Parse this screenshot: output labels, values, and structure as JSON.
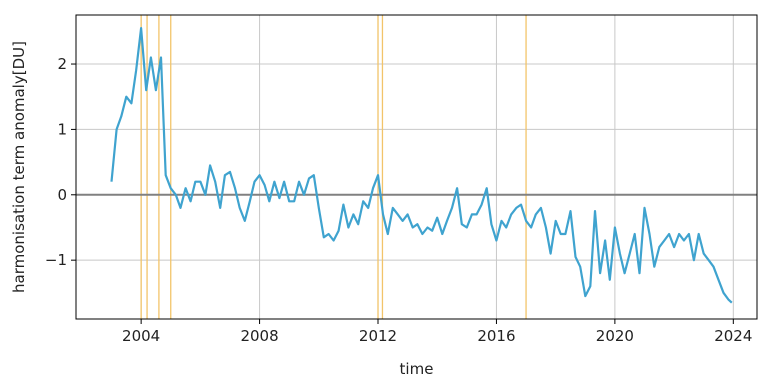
{
  "chart_data": {
    "type": "line",
    "title": "",
    "xlabel": "time",
    "ylabel": "harmonisation term anomaly[DU]",
    "xlim": [
      2001.8,
      2024.8
    ],
    "ylim": [
      -1.9,
      2.75
    ],
    "grid": true,
    "x_ticks": [
      2004,
      2008,
      2012,
      2016,
      2020,
      2024
    ],
    "x_tick_labels": [
      "2004",
      "2008",
      "2012",
      "2016",
      "2020",
      "2024"
    ],
    "y_ticks": [
      -1,
      0,
      1,
      2
    ],
    "y_tick_labels": [
      "−1",
      "0",
      "1",
      "2"
    ],
    "zero_line": 0,
    "vertical_markers": [
      2004.0,
      2004.2,
      2004.6,
      2005.0,
      2012.0,
      2012.15,
      2017.0
    ],
    "colors": {
      "series": "#3fa3cf",
      "markers": "#f2c46a",
      "zero_line": "#808080",
      "grid": "#c8c8c8"
    },
    "series": [
      {
        "x": [
          2003.0,
          2003.17,
          2003.33,
          2003.5,
          2003.67,
          2003.83,
          2004.0,
          2004.17,
          2004.33,
          2004.5,
          2004.67,
          2004.83,
          2005.0,
          2005.17,
          2005.33,
          2005.5,
          2005.67,
          2005.83,
          2006.0,
          2006.17,
          2006.33,
          2006.5,
          2006.67,
          2006.83,
          2007.0,
          2007.17,
          2007.33,
          2007.5,
          2007.67,
          2007.83,
          2008.0,
          2008.17,
          2008.33,
          2008.5,
          2008.67,
          2008.83,
          2009.0,
          2009.17,
          2009.33,
          2009.5,
          2009.67,
          2009.83,
          2010.0,
          2010.17,
          2010.33,
          2010.5,
          2010.67,
          2010.83,
          2011.0,
          2011.17,
          2011.33,
          2011.5,
          2011.67,
          2011.83,
          2012.0,
          2012.17,
          2012.33,
          2012.5,
          2012.67,
          2012.83,
          2013.0,
          2013.17,
          2013.33,
          2013.5,
          2013.67,
          2013.83,
          2014.0,
          2014.17,
          2014.33,
          2014.5,
          2014.67,
          2014.83,
          2015.0,
          2015.17,
          2015.33,
          2015.5,
          2015.67,
          2015.83,
          2016.0,
          2016.17,
          2016.33,
          2016.5,
          2016.67,
          2016.83,
          2017.0,
          2017.17,
          2017.33,
          2017.5,
          2017.67,
          2017.83,
          2018.0,
          2018.17,
          2018.33,
          2018.5,
          2018.67,
          2018.83,
          2019.0,
          2019.17,
          2019.33,
          2019.5,
          2019.67,
          2019.83,
          2020.0,
          2020.17,
          2020.33,
          2020.5,
          2020.67,
          2020.83,
          2021.0,
          2021.17,
          2021.33,
          2021.5,
          2021.67,
          2021.83,
          2022.0,
          2022.17,
          2022.33,
          2022.5,
          2022.67,
          2022.83,
          2023.0,
          2023.17,
          2023.33,
          2023.5,
          2023.67,
          2023.83,
          2023.95
        ],
        "values": [
          0.2,
          1.0,
          1.2,
          1.5,
          1.4,
          1.9,
          2.55,
          1.6,
          2.1,
          1.6,
          2.1,
          0.3,
          0.1,
          0.0,
          -0.2,
          0.1,
          -0.1,
          0.2,
          0.2,
          0.0,
          0.45,
          0.2,
          -0.2,
          0.3,
          0.35,
          0.1,
          -0.2,
          -0.4,
          -0.1,
          0.2,
          0.3,
          0.15,
          -0.1,
          0.2,
          -0.05,
          0.2,
          -0.1,
          -0.1,
          0.2,
          0.0,
          0.25,
          0.3,
          -0.2,
          -0.65,
          -0.6,
          -0.7,
          -0.55,
          -0.15,
          -0.5,
          -0.3,
          -0.45,
          -0.1,
          -0.2,
          0.1,
          0.3,
          -0.3,
          -0.6,
          -0.2,
          -0.3,
          -0.4,
          -0.3,
          -0.5,
          -0.45,
          -0.6,
          -0.5,
          -0.55,
          -0.35,
          -0.6,
          -0.4,
          -0.2,
          0.1,
          -0.45,
          -0.5,
          -0.3,
          -0.3,
          -0.15,
          0.1,
          -0.45,
          -0.7,
          -0.4,
          -0.5,
          -0.3,
          -0.2,
          -0.15,
          -0.4,
          -0.5,
          -0.3,
          -0.2,
          -0.5,
          -0.9,
          -0.4,
          -0.6,
          -0.6,
          -0.25,
          -0.95,
          -1.1,
          -1.55,
          -1.4,
          -0.25,
          -1.2,
          -0.7,
          -1.3,
          -0.5,
          -0.9,
          -1.2,
          -0.9,
          -0.6,
          -1.2,
          -0.2,
          -0.6,
          -1.1,
          -0.8,
          -0.7,
          -0.6,
          -0.8,
          -0.6,
          -0.7,
          -0.6,
          -1.0,
          -0.6,
          -0.9,
          -1.0,
          -1.1,
          -1.3,
          -1.5,
          -1.6,
          -1.65
        ]
      }
    ]
  }
}
